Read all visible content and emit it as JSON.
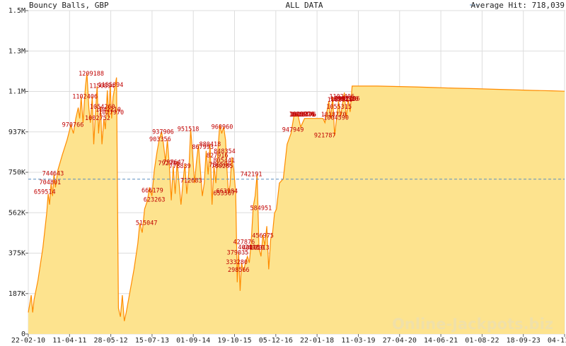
{
  "header": {
    "left_title": "Bouncy Balls, GBP",
    "center_title": "ALL DATA",
    "legend_label": "Average Hit: 718,039"
  },
  "watermark": "Online-Jackpots.biz",
  "colors": {
    "area_fill": "#fde38e",
    "line": "#ff8c00",
    "average_line": "#5a8fc0",
    "labels": "#c00000",
    "grid": "#dddddd"
  },
  "chart_data": {
    "type": "area",
    "title": "Bouncy Balls, GBP",
    "subtitle": "ALL DATA",
    "xlabel": "",
    "ylabel": "",
    "ylim": [
      0,
      1500000
    ],
    "grid": true,
    "legend_position": "top-right",
    "average": {
      "label": "Average Hit: 718,039",
      "value": 718039
    },
    "y_ticks": [
      {
        "value": 0,
        "label": "0"
      },
      {
        "value": 187500,
        "label": "187K"
      },
      {
        "value": 375000,
        "label": "375K"
      },
      {
        "value": 562500,
        "label": "562K"
      },
      {
        "value": 750000,
        "label": "750K"
      },
      {
        "value": 937500,
        "label": "937K"
      },
      {
        "value": 1125000,
        "label": "1.1M"
      },
      {
        "value": 1312500,
        "label": "1.3M"
      },
      {
        "value": 1500000,
        "label": "1.5M"
      }
    ],
    "x_ticks": [
      {
        "t": 0.0,
        "label": "22-02-10"
      },
      {
        "t": 0.0851,
        "label": "11-04-11"
      },
      {
        "t": 0.1702,
        "label": "28-05-12"
      },
      {
        "t": 0.2553,
        "label": "15-07-13"
      },
      {
        "t": 0.3404,
        "label": "01-09-14"
      },
      {
        "t": 0.4255,
        "label": "19-10-15"
      },
      {
        "t": 0.5106,
        "label": "05-12-16"
      },
      {
        "t": 0.5957,
        "label": "22-01-18"
      },
      {
        "t": 0.6809,
        "label": "11-03-19"
      },
      {
        "t": 0.766,
        "label": "27-04-20"
      },
      {
        "t": 0.8511,
        "label": "14-06-21"
      },
      {
        "t": 0.9362,
        "label": "01-08-22"
      },
      {
        "t": 1.0213,
        "label": "18-09-23"
      },
      {
        "t": 1.1064,
        "label": "04-11-24"
      }
    ],
    "series": [
      {
        "points": [
          [
            0.0,
            100000
          ],
          [
            0.003,
            140000
          ],
          [
            0.006,
            180000
          ],
          [
            0.009,
            100000
          ],
          [
            0.012,
            160000
          ],
          [
            0.02,
            250000
          ],
          [
            0.03,
            400000
          ],
          [
            0.038,
            560000
          ],
          [
            0.041,
            650000
          ],
          [
            0.044,
            600000
          ],
          [
            0.047,
            700000
          ],
          [
            0.05,
            640000
          ],
          [
            0.053,
            745000
          ],
          [
            0.056,
            680000
          ],
          [
            0.061,
            760000
          ],
          [
            0.07,
            830000
          ],
          [
            0.08,
            900000
          ],
          [
            0.088,
            970000
          ],
          [
            0.093,
            930000
          ],
          [
            0.098,
            1000000
          ],
          [
            0.103,
            1050000
          ],
          [
            0.106,
            1000000
          ],
          [
            0.109,
            1100000
          ],
          [
            0.113,
            980000
          ],
          [
            0.118,
            1150000
          ],
          [
            0.121,
            1209000
          ],
          [
            0.125,
            1050000
          ],
          [
            0.128,
            980000
          ],
          [
            0.132,
            1100000
          ],
          [
            0.135,
            880000
          ],
          [
            0.138,
            1002000
          ],
          [
            0.142,
            1150000
          ],
          [
            0.145,
            930000
          ],
          [
            0.149,
            1054000
          ],
          [
            0.152,
            880000
          ],
          [
            0.156,
            1000000
          ],
          [
            0.159,
            950000
          ],
          [
            0.163,
            1130000
          ],
          [
            0.166,
            1000000
          ],
          [
            0.169,
            1155000
          ],
          [
            0.172,
            1000000
          ],
          [
            0.175,
            1100000
          ],
          [
            0.182,
            1190000
          ],
          [
            0.186,
            120000
          ],
          [
            0.19,
            80000
          ],
          [
            0.194,
            180000
          ],
          [
            0.198,
            60000
          ],
          [
            0.202,
            100000
          ],
          [
            0.21,
            200000
          ],
          [
            0.218,
            300000
          ],
          [
            0.226,
            420000
          ],
          [
            0.23,
            515000
          ],
          [
            0.235,
            470000
          ],
          [
            0.24,
            580000
          ],
          [
            0.246,
            620000
          ],
          [
            0.25,
            680000
          ],
          [
            0.255,
            640000
          ],
          [
            0.26,
            760000
          ],
          [
            0.266,
            850000
          ],
          [
            0.27,
            900000
          ],
          [
            0.275,
            938000
          ],
          [
            0.279,
            880000
          ],
          [
            0.283,
            800000
          ],
          [
            0.287,
            900000
          ],
          [
            0.291,
            780000
          ],
          [
            0.295,
            620000
          ],
          [
            0.299,
            780000
          ],
          [
            0.303,
            650000
          ],
          [
            0.307,
            800000
          ],
          [
            0.311,
            700000
          ],
          [
            0.315,
            600000
          ],
          [
            0.319,
            700000
          ],
          [
            0.323,
            790000
          ],
          [
            0.327,
            650000
          ],
          [
            0.331,
            750000
          ],
          [
            0.335,
            950000
          ],
          [
            0.339,
            830000
          ],
          [
            0.343,
            700000
          ],
          [
            0.347,
            800000
          ],
          [
            0.351,
            880000
          ],
          [
            0.355,
            760000
          ],
          [
            0.359,
            640000
          ],
          [
            0.363,
            700000
          ],
          [
            0.367,
            850000
          ],
          [
            0.371,
            740000
          ],
          [
            0.375,
            880000
          ],
          [
            0.379,
            600000
          ],
          [
            0.383,
            780000
          ],
          [
            0.387,
            700000
          ],
          [
            0.391,
            850000
          ],
          [
            0.395,
            970000
          ],
          [
            0.399,
            930000
          ],
          [
            0.403,
            961000
          ],
          [
            0.407,
            900000
          ],
          [
            0.41,
            760000
          ],
          [
            0.413,
            650000
          ],
          [
            0.416,
            690000
          ],
          [
            0.42,
            820000
          ],
          [
            0.424,
            760000
          ],
          [
            0.428,
            650000
          ],
          [
            0.431,
            240000
          ],
          [
            0.434,
            380000
          ],
          [
            0.437,
            200000
          ],
          [
            0.44,
            330000
          ],
          [
            0.444,
            290000
          ],
          [
            0.448,
            330000
          ],
          [
            0.452,
            360000
          ],
          [
            0.456,
            330000
          ],
          [
            0.46,
            430000
          ],
          [
            0.464,
            590000
          ],
          [
            0.468,
            640000
          ],
          [
            0.472,
            740000
          ],
          [
            0.476,
            400000
          ],
          [
            0.48,
            360000
          ],
          [
            0.484,
            460000
          ],
          [
            0.488,
            410000
          ],
          [
            0.492,
            500000
          ],
          [
            0.496,
            300000
          ],
          [
            0.5,
            440000
          ],
          [
            0.504,
            470000
          ],
          [
            0.508,
            560000
          ],
          [
            0.512,
            580000
          ],
          [
            0.518,
            700000
          ],
          [
            0.526,
            720000
          ],
          [
            0.534,
            880000
          ],
          [
            0.542,
            930000
          ],
          [
            0.548,
            1010000
          ],
          [
            0.556,
            1018000
          ],
          [
            0.562,
            960000
          ],
          [
            0.57,
            1000000
          ],
          [
            0.58,
            1000000
          ],
          [
            0.59,
            1000000
          ],
          [
            0.6,
            1000000
          ],
          [
            0.608,
            1000000
          ],
          [
            0.612,
            980000
          ],
          [
            0.616,
            1030000
          ],
          [
            0.62,
            1080000
          ],
          [
            0.624,
            1000000
          ],
          [
            0.628,
            1100000
          ],
          [
            0.632,
            920000
          ],
          [
            0.636,
            1000000
          ],
          [
            0.64,
            1080000
          ],
          [
            0.644,
            1010000
          ],
          [
            0.648,
            1060000
          ],
          [
            0.652,
            1120000
          ],
          [
            0.656,
            1000000
          ],
          [
            0.66,
            1090000
          ],
          [
            0.664,
            1030000
          ],
          [
            0.668,
            1150000
          ],
          [
            0.68,
            1150000
          ],
          [
            0.72,
            1150000
          ],
          [
            0.76,
            1148000
          ],
          [
            0.8,
            1146000
          ],
          [
            0.84,
            1143000
          ],
          [
            0.88,
            1140000
          ],
          [
            0.92,
            1138000
          ],
          [
            0.96,
            1135000
          ],
          [
            1.0,
            1133000
          ],
          [
            1.04,
            1130000
          ],
          [
            1.08,
            1128000
          ],
          [
            1.1064,
            1126000
          ]
        ]
      }
    ],
    "data_labels": [
      {
        "t": 0.051,
        "value": 744643,
        "label": "744643"
      },
      {
        "t": 0.045,
        "value": 704801,
        "label": "704801"
      },
      {
        "t": 0.034,
        "value": 659514,
        "label": "659514"
      },
      {
        "t": 0.092,
        "value": 970766,
        "label": "970766"
      },
      {
        "t": 0.117,
        "value": 1102406,
        "label": "1102406"
      },
      {
        "t": 0.13,
        "value": 1209188,
        "label": "1209188"
      },
      {
        "t": 0.152,
        "value": 1150894,
        "label": "1150894"
      },
      {
        "t": 0.17,
        "value": 1155394,
        "label": "1155394"
      },
      {
        "t": 0.153,
        "value": 1054260,
        "label": "1054260"
      },
      {
        "t": 0.165,
        "value": 1042210,
        "label": "1042210"
      },
      {
        "t": 0.143,
        "value": 1002752,
        "label": "1002752"
      },
      {
        "t": 0.171,
        "value": 1027970,
        "label": "1027970"
      },
      {
        "t": 0.256,
        "value": 666179,
        "label": "666179"
      },
      {
        "t": 0.26,
        "value": 623263,
        "label": "623263"
      },
      {
        "t": 0.244,
        "value": 515047,
        "label": "515047"
      },
      {
        "t": 0.278,
        "value": 937906,
        "label": "937906"
      },
      {
        "t": 0.272,
        "value": 903356,
        "label": "903356"
      },
      {
        "t": 0.3,
        "value": 797647,
        "label": "797647"
      },
      {
        "t": 0.29,
        "value": 792796,
        "label": "792796"
      },
      {
        "t": 0.313,
        "value": 778839,
        "label": "778839"
      },
      {
        "t": 0.33,
        "value": 951518,
        "label": "951518"
      },
      {
        "t": 0.36,
        "value": 867993,
        "label": "867993"
      },
      {
        "t": 0.375,
        "value": 880418,
        "label": "880418"
      },
      {
        "t": 0.336,
        "value": 712683,
        "label": "712683"
      },
      {
        "t": 0.4,
        "value": 960960,
        "label": "960960"
      },
      {
        "t": 0.405,
        "value": 848354,
        "label": "848354"
      },
      {
        "t": 0.39,
        "value": 827916,
        "label": "827916"
      },
      {
        "t": 0.404,
        "value": 805441,
        "label": "805441"
      },
      {
        "t": 0.4,
        "value": 780285,
        "label": "780285"
      },
      {
        "t": 0.395,
        "value": 786506,
        "label": "786506"
      },
      {
        "t": 0.46,
        "value": 742191,
        "label": "742191"
      },
      {
        "t": 0.41,
        "value": 663984,
        "label": "663984"
      },
      {
        "t": 0.404,
        "value": 653567,
        "label": "653567"
      },
      {
        "t": 0.48,
        "value": 584951,
        "label": "584951"
      },
      {
        "t": 0.484,
        "value": 456975,
        "label": "456975"
      },
      {
        "t": 0.445,
        "value": 427876,
        "label": "427876"
      },
      {
        "t": 0.455,
        "value": 402110,
        "label": "402110"
      },
      {
        "t": 0.475,
        "value": 402013,
        "label": "402013"
      },
      {
        "t": 0.464,
        "value": 401010,
        "label": "401010"
      },
      {
        "t": 0.432,
        "value": 379035,
        "label": "379035"
      },
      {
        "t": 0.43,
        "value": 333280,
        "label": "333280"
      },
      {
        "t": 0.434,
        "value": 298566,
        "label": "298566"
      },
      {
        "t": 0.546,
        "value": 947949,
        "label": "947949"
      },
      {
        "t": 0.564,
        "value": 1019776,
        "label": "1019776"
      },
      {
        "t": 0.565,
        "value": 1018976,
        "label": "1018976"
      },
      {
        "t": 0.567,
        "value": 1018476,
        "label": "1018476"
      },
      {
        "t": 0.568,
        "value": 1018776,
        "label": "1018776"
      },
      {
        "t": 0.612,
        "value": 921787,
        "label": "921787"
      },
      {
        "t": 0.641,
        "value": 1055315,
        "label": "1055315"
      },
      {
        "t": 0.63,
        "value": 1018770,
        "label": "1018770"
      },
      {
        "t": 0.635,
        "value": 1004590,
        "label": "1004590"
      },
      {
        "t": 0.647,
        "value": 1102406,
        "label": "1102406"
      },
      {
        "t": 0.643,
        "value": 1086916,
        "label": "1086916"
      },
      {
        "t": 0.649,
        "value": 1090210,
        "label": "1090210"
      },
      {
        "t": 0.655,
        "value": 1090510,
        "label": "1090510"
      },
      {
        "t": 0.658,
        "value": 1092106,
        "label": "1092106"
      }
    ]
  }
}
